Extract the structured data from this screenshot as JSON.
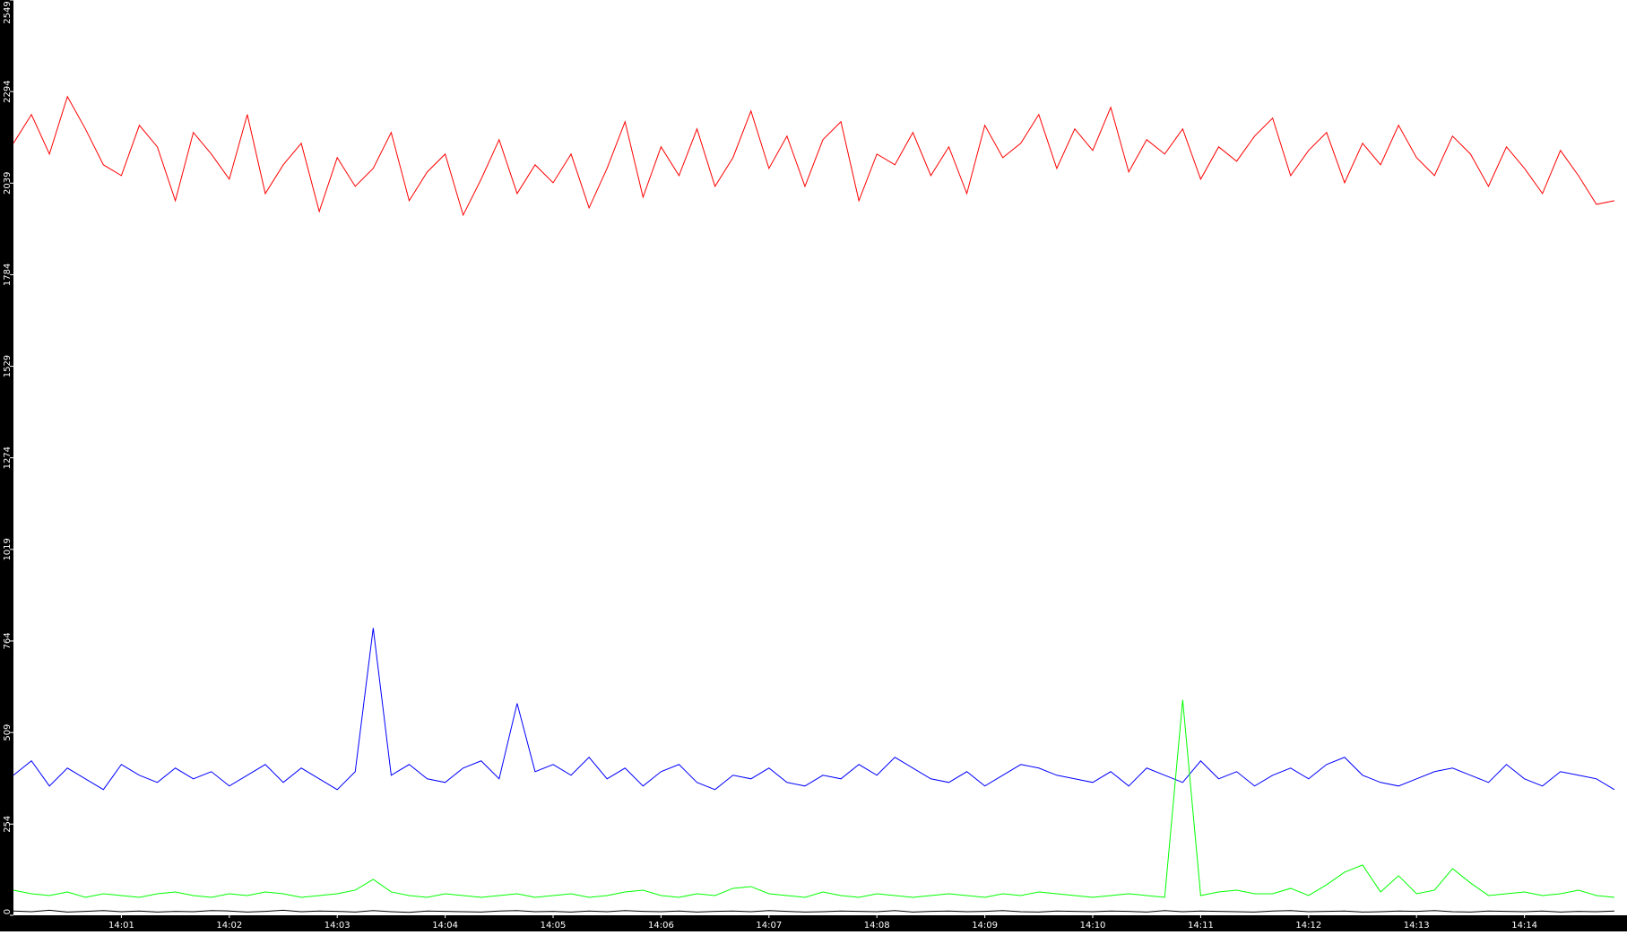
{
  "chart_data": {
    "type": "line",
    "categories": [
      null,
      null,
      null,
      null,
      null,
      null,
      "14:01",
      null,
      null,
      null,
      null,
      null,
      "14:02",
      null,
      null,
      null,
      null,
      null,
      "14:03",
      null,
      null,
      null,
      null,
      null,
      "14:04",
      null,
      null,
      null,
      null,
      null,
      "14:05",
      null,
      null,
      null,
      null,
      null,
      "14:06",
      null,
      null,
      null,
      null,
      null,
      "14:07",
      null,
      null,
      null,
      null,
      null,
      "14:08",
      null,
      null,
      null,
      null,
      null,
      "14:09",
      null,
      null,
      null,
      null,
      null,
      "14:10",
      null,
      null,
      null,
      null,
      null,
      "14:11",
      null,
      null,
      null,
      null,
      null,
      "14:12",
      null,
      null,
      null,
      null,
      null,
      "14:13",
      null,
      null,
      null,
      null,
      null,
      "14:14",
      null,
      null,
      null,
      null,
      null
    ],
    "series": [
      {
        "color": "#ff0000",
        "values": [
          2150,
          2230,
          2120,
          2280,
          2190,
          2090,
          2060,
          2200,
          2140,
          1990,
          2180,
          2120,
          2050,
          2230,
          2010,
          2090,
          2150,
          1960,
          2110,
          2030,
          2080,
          2180,
          1990,
          2070,
          2120,
          1950,
          2050,
          2160,
          2010,
          2090,
          2040,
          2120,
          1970,
          2080,
          2210,
          2000,
          2140,
          2060,
          2190,
          2030,
          2110,
          2240,
          2080,
          2170,
          2030,
          2160,
          2210,
          1990,
          2120,
          2090,
          2180,
          2060,
          2140,
          2010,
          2200,
          2110,
          2150,
          2230,
          2080,
          2190,
          2130,
          2250,
          2070,
          2160,
          2120,
          2190,
          2050,
          2140,
          2100,
          2170,
          2220,
          2060,
          2130,
          2180,
          2040,
          2150,
          2090,
          2200,
          2110,
          2060,
          2170,
          2120,
          2030,
          2140,
          2080,
          2010,
          2130,
          2060,
          1980,
          1990
        ]
      },
      {
        "color": "#0000ff",
        "values": [
          390,
          430,
          360,
          410,
          380,
          350,
          420,
          390,
          370,
          410,
          380,
          400,
          360,
          390,
          420,
          370,
          410,
          380,
          350,
          400,
          800,
          390,
          420,
          380,
          370,
          410,
          430,
          380,
          590,
          400,
          420,
          390,
          440,
          380,
          410,
          360,
          400,
          420,
          370,
          350,
          390,
          380,
          410,
          370,
          360,
          390,
          380,
          420,
          390,
          440,
          410,
          380,
          370,
          400,
          360,
          390,
          420,
          410,
          390,
          380,
          370,
          400,
          360,
          410,
          390,
          370,
          430,
          380,
          400,
          360,
          390,
          410,
          380,
          420,
          440,
          390,
          370,
          360,
          380,
          400,
          410,
          390,
          370,
          420,
          380,
          360,
          400,
          390,
          380,
          350
        ]
      },
      {
        "color": "#00ff00",
        "values": [
          70,
          60,
          55,
          65,
          50,
          60,
          55,
          50,
          60,
          65,
          55,
          50,
          60,
          55,
          65,
          60,
          50,
          55,
          60,
          70,
          100,
          65,
          55,
          50,
          60,
          55,
          50,
          55,
          60,
          50,
          55,
          60,
          50,
          55,
          65,
          70,
          55,
          50,
          60,
          55,
          75,
          80,
          60,
          55,
          50,
          65,
          55,
          50,
          60,
          55,
          50,
          55,
          60,
          55,
          50,
          60,
          55,
          65,
          60,
          55,
          50,
          55,
          60,
          55,
          50,
          600,
          55,
          65,
          70,
          60,
          60,
          75,
          55,
          85,
          120,
          140,
          65,
          110,
          60,
          70,
          130,
          90,
          55,
          60,
          65,
          55,
          60,
          70,
          55,
          50
        ]
      },
      {
        "color": "#000000",
        "values": [
          12,
          10,
          14,
          9,
          11,
          13,
          10,
          12,
          9,
          11,
          10,
          13,
          12,
          9,
          11,
          14,
          10,
          12,
          11,
          9,
          13,
          10,
          8,
          12,
          11,
          10,
          9,
          12,
          13,
          10,
          11,
          9,
          12,
          10,
          13,
          11,
          10,
          12,
          9,
          11,
          12,
          10,
          13,
          11,
          9,
          10,
          12,
          11,
          10,
          13,
          9,
          11,
          12,
          10,
          11,
          13,
          10,
          9,
          12,
          11,
          10,
          12,
          11,
          9,
          13,
          10,
          12,
          11,
          10,
          9,
          12,
          13,
          10,
          11,
          12,
          9,
          10,
          12,
          11,
          13,
          10,
          9,
          12,
          11,
          10,
          12,
          9,
          11,
          10,
          12
        ]
      }
    ],
    "ylim": [
      0,
      2549
    ],
    "yticks": [
      0,
      254,
      509,
      764,
      1019,
      1274,
      1529,
      1784,
      2039,
      2294,
      2549
    ]
  }
}
